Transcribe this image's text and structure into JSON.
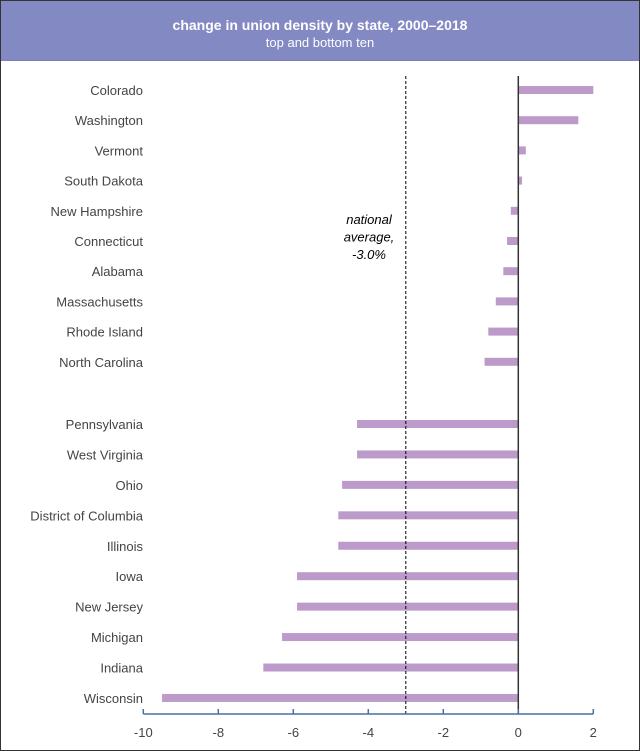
{
  "chart_data": {
    "type": "bar",
    "orientation": "horizontal",
    "title": "change in union density by state, 2000–2018",
    "subtitle": "top and bottom ten",
    "categories": [
      "Colorado",
      "Washington",
      "Vermont",
      "South Dakota",
      "New Hampshire",
      "Connecticut",
      "Alabama",
      "Massachusetts",
      "Rhode Island",
      "North Carolina",
      "Pennsylvania",
      "West Virginia",
      "Ohio",
      "District of Columbia",
      "Illinois",
      "Iowa",
      "New Jersey",
      "Michigan",
      "Indiana",
      "Wisconsin"
    ],
    "values": [
      2.0,
      1.6,
      0.2,
      0.1,
      -0.2,
      -0.3,
      -0.4,
      -0.6,
      -0.8,
      -0.9,
      -4.3,
      -4.3,
      -4.7,
      -4.8,
      -4.8,
      -5.9,
      -5.9,
      -6.3,
      -6.8,
      -9.5
    ],
    "groups": [
      "top ten",
      "bottom ten"
    ],
    "xlim": [
      -10,
      2
    ],
    "xticks": [
      "-10",
      "-8",
      "-6",
      "-4",
      "-2",
      "0",
      "2"
    ],
    "reference_line": {
      "value": -3.0,
      "label_lines": [
        "national",
        "average,",
        "-3.0%"
      ],
      "style": "dashed"
    },
    "grid": false,
    "colors": {
      "bar": "#bc9bcb",
      "header": "#8289c3",
      "axis": "#4a6fa5"
    }
  }
}
